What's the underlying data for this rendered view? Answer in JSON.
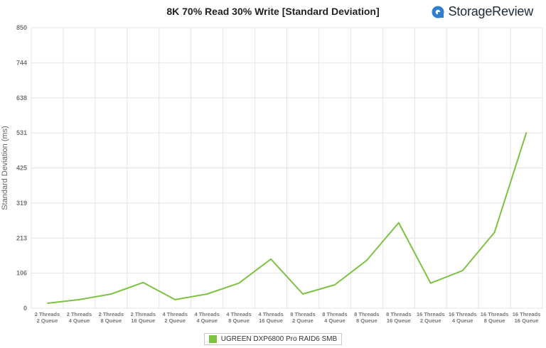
{
  "header": {
    "title": "8K 70% Read 30% Write [Standard Deviation]",
    "logo_text": "StorageReview",
    "logo_icon": "storagereview-logo-icon"
  },
  "chart_data": {
    "type": "line",
    "title": "8K 70% Read 30% Write [Standard Deviation]",
    "ylabel": "Standard Deviation (ms)",
    "xlabel": "",
    "ylim": [
      0,
      850
    ],
    "yticks": [
      "850",
      "744",
      "638",
      "531",
      "425",
      "319",
      "213",
      "106",
      "0"
    ],
    "categories": [
      [
        "2 Threads",
        "2 Queue"
      ],
      [
        "2 Threads",
        "4 Queue"
      ],
      [
        "2 Threads",
        "8 Queue"
      ],
      [
        "2 Threads",
        "16 Queue"
      ],
      [
        "4 Threads",
        "2 Queue"
      ],
      [
        "4 Threads",
        "4 Queue"
      ],
      [
        "4 Threads",
        "8 Queue"
      ],
      [
        "4 Threads",
        "16 Queue"
      ],
      [
        "8 Threads",
        "2 Queue"
      ],
      [
        "8 Threads",
        "4 Queue"
      ],
      [
        "8 Threads",
        "8 Queue"
      ],
      [
        "8 Threads",
        "16 Queue"
      ],
      [
        "16 Threads",
        "2 Queue"
      ],
      [
        "16 Threads",
        "4 Queue"
      ],
      [
        "16 Threads",
        "8 Queue"
      ],
      [
        "16 Threads",
        "16 Queue"
      ]
    ],
    "series": [
      {
        "name": "UGREEN DXP6800 Pro RAID6 SMB",
        "color": "#7dc243",
        "values": [
          15,
          26,
          43,
          78,
          26,
          43,
          76,
          149,
          43,
          71,
          145,
          259,
          76,
          114,
          230,
          533
        ]
      }
    ],
    "grid": true,
    "legend_position": "bottom-center"
  }
}
